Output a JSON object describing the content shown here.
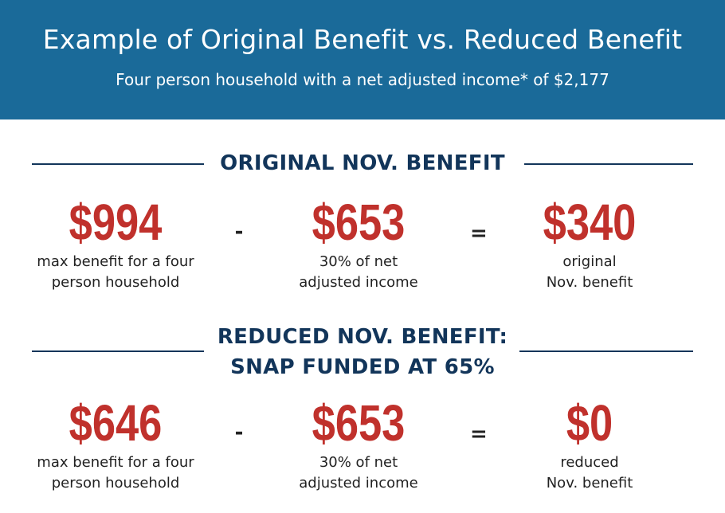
{
  "header": {
    "title": "Example of Original Benefit vs. Reduced Benefit",
    "subtitle": "Four person household with a net adjusted income* of $2,177"
  },
  "original": {
    "heading": "ORIGINAL NOV. BENEFIT",
    "max_amount": "$994",
    "max_caption_1": "max benefit for a four",
    "max_caption_2": "person household",
    "minus": "-",
    "income_amount": "$653",
    "income_caption_1": "30% of net",
    "income_caption_2": "adjusted income",
    "equals": "=",
    "result_amount": "$340",
    "result_caption_1": "original",
    "result_caption_2": "Nov. benefit"
  },
  "reduced": {
    "heading_1": "REDUCED NOV. BENEFIT:",
    "heading_2": "SNAP FUNDED AT 65%",
    "max_amount": "$646",
    "max_caption_1": "max benefit for a four",
    "max_caption_2": "person household",
    "minus": "-",
    "income_amount": "$653",
    "income_caption_1": "30% of net",
    "income_caption_2": "adjusted income",
    "equals": "=",
    "result_amount": "$0",
    "result_caption_1": "reduced",
    "result_caption_2": "Nov. benefit"
  },
  "colors": {
    "banner": "#1a6a99",
    "heading": "#12355a",
    "amount": "#c0312c"
  }
}
